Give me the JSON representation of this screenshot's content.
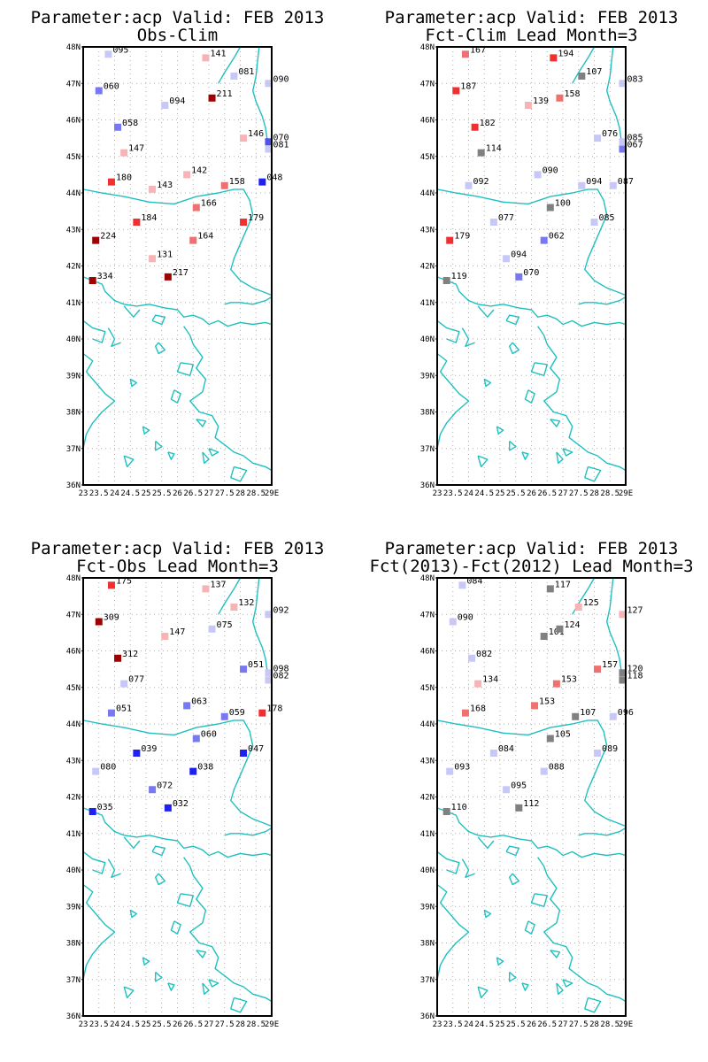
{
  "colors": {
    "coast": "#20c0c0"
  },
  "axes": {
    "xticks": [
      "23",
      "23.5",
      "24",
      "24.5",
      "25",
      "25.5",
      "26",
      "26.5",
      "27",
      "27.5",
      "28",
      "28.5",
      "29E"
    ],
    "yticks": [
      "36N",
      "37N",
      "38N",
      "39N",
      "40N",
      "41N",
      "42N",
      "43N",
      "44N",
      "45N",
      "46N",
      "47N",
      "48N"
    ]
  },
  "chart_data": [
    {
      "type": "scatter",
      "title": "Parameter:acp Valid: FEB 2013",
      "subtitle": "Obs-Clim",
      "xlim": [
        23,
        29
      ],
      "ylim": [
        36,
        48
      ],
      "grid": true,
      "stations": [
        {
          "x": 23.8,
          "y": 47.8,
          "value": "095",
          "color": "#c8c8f8"
        },
        {
          "x": 26.9,
          "y": 47.7,
          "value": "141",
          "color": "#f8b4b4"
        },
        {
          "x": 27.8,
          "y": 47.2,
          "value": "081",
          "color": "#c8c8f8"
        },
        {
          "x": 28.9,
          "y": 47.0,
          "value": "090",
          "color": "#c8c8f8"
        },
        {
          "x": 23.5,
          "y": 46.8,
          "value": "060",
          "color": "#7878f0"
        },
        {
          "x": 25.6,
          "y": 46.4,
          "value": "094",
          "color": "#c8c8f8"
        },
        {
          "x": 27.1,
          "y": 46.6,
          "value": "211",
          "color": "#a00000"
        },
        {
          "x": 24.1,
          "y": 45.8,
          "value": "058",
          "color": "#7878f0"
        },
        {
          "x": 28.1,
          "y": 45.5,
          "value": "146",
          "color": "#f8b4b4"
        },
        {
          "x": 28.9,
          "y": 45.4,
          "value": "070",
          "color": "#5050f0"
        },
        {
          "x": 28.9,
          "y": 45.2,
          "value": "081",
          "color": "#c8c8f8"
        },
        {
          "x": 24.3,
          "y": 45.1,
          "value": "147",
          "color": "#f8b4b4"
        },
        {
          "x": 26.3,
          "y": 44.5,
          "value": "142",
          "color": "#f8b4b4"
        },
        {
          "x": 23.9,
          "y": 44.3,
          "value": "180",
          "color": "#f03030"
        },
        {
          "x": 25.2,
          "y": 44.1,
          "value": "143",
          "color": "#f8b4b4"
        },
        {
          "x": 27.5,
          "y": 44.2,
          "value": "158",
          "color": "#f07070"
        },
        {
          "x": 28.7,
          "y": 44.3,
          "value": "048",
          "color": "#2020f0"
        },
        {
          "x": 26.6,
          "y": 43.6,
          "value": "166",
          "color": "#f07070"
        },
        {
          "x": 24.7,
          "y": 43.2,
          "value": "184",
          "color": "#f03030"
        },
        {
          "x": 28.1,
          "y": 43.2,
          "value": "179",
          "color": "#f03030"
        },
        {
          "x": 23.4,
          "y": 42.7,
          "value": "224",
          "color": "#a00000"
        },
        {
          "x": 26.5,
          "y": 42.7,
          "value": "164",
          "color": "#f07070"
        },
        {
          "x": 25.2,
          "y": 42.2,
          "value": "131",
          "color": "#f8b4b4"
        },
        {
          "x": 25.7,
          "y": 41.7,
          "value": "217",
          "color": "#a00000"
        },
        {
          "x": 23.3,
          "y": 41.6,
          "value": "334",
          "color": "#a00000"
        }
      ]
    },
    {
      "type": "scatter",
      "title": "Parameter:acp Valid: FEB 2013",
      "subtitle": "Fct-Clim Lead Month=3",
      "xlim": [
        23,
        29
      ],
      "ylim": [
        36,
        48
      ],
      "grid": true,
      "stations": [
        {
          "x": 23.9,
          "y": 47.8,
          "value": "167",
          "color": "#f07070"
        },
        {
          "x": 26.7,
          "y": 47.7,
          "value": "194",
          "color": "#f03030"
        },
        {
          "x": 27.6,
          "y": 47.2,
          "value": "107",
          "color": "#808080"
        },
        {
          "x": 28.9,
          "y": 47.0,
          "value": "083",
          "color": "#c8c8f8"
        },
        {
          "x": 23.6,
          "y": 46.8,
          "value": "187",
          "color": "#f03030"
        },
        {
          "x": 25.9,
          "y": 46.4,
          "value": "139",
          "color": "#f8b4b4"
        },
        {
          "x": 26.9,
          "y": 46.6,
          "value": "158",
          "color": "#f07070"
        },
        {
          "x": 24.2,
          "y": 45.8,
          "value": "182",
          "color": "#f03030"
        },
        {
          "x": 28.1,
          "y": 45.5,
          "value": "076",
          "color": "#c8c8f8"
        },
        {
          "x": 28.9,
          "y": 45.4,
          "value": "085",
          "color": "#c8c8f8"
        },
        {
          "x": 28.9,
          "y": 45.2,
          "value": "067",
          "color": "#7878f0"
        },
        {
          "x": 24.4,
          "y": 45.1,
          "value": "114",
          "color": "#808080"
        },
        {
          "x": 26.2,
          "y": 44.5,
          "value": "090",
          "color": "#c8c8f8"
        },
        {
          "x": 24.0,
          "y": 44.2,
          "value": "092",
          "color": "#c8c8f8"
        },
        {
          "x": 27.6,
          "y": 44.2,
          "value": "094",
          "color": "#c8c8f8"
        },
        {
          "x": 28.6,
          "y": 44.2,
          "value": "087",
          "color": "#c8c8f8"
        },
        {
          "x": 26.6,
          "y": 43.6,
          "value": "100",
          "color": "#808080"
        },
        {
          "x": 28.0,
          "y": 43.2,
          "value": "085",
          "color": "#c8c8f8"
        },
        {
          "x": 24.8,
          "y": 43.2,
          "value": "077",
          "color": "#c8c8f8"
        },
        {
          "x": 23.4,
          "y": 42.7,
          "value": "179",
          "color": "#f03030"
        },
        {
          "x": 26.4,
          "y": 42.7,
          "value": "062",
          "color": "#7878f0"
        },
        {
          "x": 25.2,
          "y": 42.2,
          "value": "094",
          "color": "#c8c8f8"
        },
        {
          "x": 25.6,
          "y": 41.7,
          "value": "070",
          "color": "#7878f0"
        },
        {
          "x": 23.3,
          "y": 41.6,
          "value": "119",
          "color": "#808080"
        }
      ]
    },
    {
      "type": "scatter",
      "title": "Parameter:acp Valid: FEB 2013",
      "subtitle": "Fct-Obs Lead Month=3",
      "xlim": [
        23,
        29
      ],
      "ylim": [
        36,
        48
      ],
      "grid": true,
      "stations": [
        {
          "x": 23.9,
          "y": 47.8,
          "value": "175",
          "color": "#f03030"
        },
        {
          "x": 26.9,
          "y": 47.7,
          "value": "137",
          "color": "#f8b4b4"
        },
        {
          "x": 27.8,
          "y": 47.2,
          "value": "132",
          "color": "#f8b4b4"
        },
        {
          "x": 28.9,
          "y": 47.0,
          "value": "092",
          "color": "#c8c8f8"
        },
        {
          "x": 23.5,
          "y": 46.8,
          "value": "309",
          "color": "#a00000"
        },
        {
          "x": 25.6,
          "y": 46.4,
          "value": "147",
          "color": "#f8b4b4"
        },
        {
          "x": 27.1,
          "y": 46.6,
          "value": "075",
          "color": "#c8c8f8"
        },
        {
          "x": 24.1,
          "y": 45.8,
          "value": "312",
          "color": "#a00000"
        },
        {
          "x": 28.1,
          "y": 45.5,
          "value": "051",
          "color": "#7878f0"
        },
        {
          "x": 28.9,
          "y": 45.4,
          "value": "098",
          "color": "#c8c8f8"
        },
        {
          "x": 28.9,
          "y": 45.2,
          "value": "082",
          "color": "#c8c8f8"
        },
        {
          "x": 24.3,
          "y": 45.1,
          "value": "077",
          "color": "#c8c8f8"
        },
        {
          "x": 26.3,
          "y": 44.5,
          "value": "063",
          "color": "#7878f0"
        },
        {
          "x": 23.9,
          "y": 44.3,
          "value": "051",
          "color": "#7878f0"
        },
        {
          "x": 27.5,
          "y": 44.2,
          "value": "059",
          "color": "#7878f0"
        },
        {
          "x": 28.7,
          "y": 44.3,
          "value": "178",
          "color": "#f03030"
        },
        {
          "x": 26.6,
          "y": 43.6,
          "value": "060",
          "color": "#7878f0"
        },
        {
          "x": 24.7,
          "y": 43.2,
          "value": "039",
          "color": "#2020f0"
        },
        {
          "x": 28.1,
          "y": 43.2,
          "value": "047",
          "color": "#2020f0"
        },
        {
          "x": 23.4,
          "y": 42.7,
          "value": "080",
          "color": "#c8c8f8"
        },
        {
          "x": 26.5,
          "y": 42.7,
          "value": "038",
          "color": "#2020f0"
        },
        {
          "x": 25.2,
          "y": 42.2,
          "value": "072",
          "color": "#7878f0"
        },
        {
          "x": 25.7,
          "y": 41.7,
          "value": "032",
          "color": "#2020f0"
        },
        {
          "x": 23.3,
          "y": 41.6,
          "value": "035",
          "color": "#2020f0"
        }
      ]
    },
    {
      "type": "scatter",
      "title": "Parameter:acp Valid: FEB 2013",
      "subtitle": "Fct(2013)-Fct(2012) Lead Month=3",
      "xlim": [
        23,
        29
      ],
      "ylim": [
        36,
        48
      ],
      "grid": true,
      "stations": [
        {
          "x": 23.8,
          "y": 47.8,
          "value": "084",
          "color": "#c8c8f8"
        },
        {
          "x": 26.6,
          "y": 47.7,
          "value": "117",
          "color": "#808080"
        },
        {
          "x": 27.5,
          "y": 47.2,
          "value": "125",
          "color": "#f8b4b4"
        },
        {
          "x": 28.9,
          "y": 47.0,
          "value": "127",
          "color": "#f8b4b4"
        },
        {
          "x": 23.5,
          "y": 46.8,
          "value": "090",
          "color": "#c8c8f8"
        },
        {
          "x": 26.4,
          "y": 46.4,
          "value": "101",
          "color": "#808080"
        },
        {
          "x": 26.9,
          "y": 46.6,
          "value": "124",
          "color": "#808080"
        },
        {
          "x": 24.1,
          "y": 45.8,
          "value": "082",
          "color": "#c8c8f8"
        },
        {
          "x": 28.1,
          "y": 45.5,
          "value": "157",
          "color": "#f07070"
        },
        {
          "x": 28.9,
          "y": 45.4,
          "value": "120",
          "color": "#808080"
        },
        {
          "x": 28.9,
          "y": 45.2,
          "value": "118",
          "color": "#808080"
        },
        {
          "x": 24.3,
          "y": 45.1,
          "value": "134",
          "color": "#f8b4b4"
        },
        {
          "x": 26.8,
          "y": 45.1,
          "value": "153",
          "color": "#f07070"
        },
        {
          "x": 26.1,
          "y": 44.5,
          "value": "153",
          "color": "#f07070"
        },
        {
          "x": 23.9,
          "y": 44.3,
          "value": "168",
          "color": "#f07070"
        },
        {
          "x": 27.4,
          "y": 44.2,
          "value": "107",
          "color": "#808080"
        },
        {
          "x": 28.6,
          "y": 44.2,
          "value": "096",
          "color": "#c8c8f8"
        },
        {
          "x": 26.6,
          "y": 43.6,
          "value": "105",
          "color": "#808080"
        },
        {
          "x": 24.8,
          "y": 43.2,
          "value": "084",
          "color": "#c8c8f8"
        },
        {
          "x": 28.1,
          "y": 43.2,
          "value": "089",
          "color": "#c8c8f8"
        },
        {
          "x": 23.4,
          "y": 42.7,
          "value": "093",
          "color": "#c8c8f8"
        },
        {
          "x": 26.4,
          "y": 42.7,
          "value": "088",
          "color": "#c8c8f8"
        },
        {
          "x": 25.2,
          "y": 42.2,
          "value": "095",
          "color": "#c8c8f8"
        },
        {
          "x": 25.6,
          "y": 41.7,
          "value": "112",
          "color": "#808080"
        },
        {
          "x": 23.3,
          "y": 41.6,
          "value": "110",
          "color": "#808080"
        }
      ]
    }
  ]
}
